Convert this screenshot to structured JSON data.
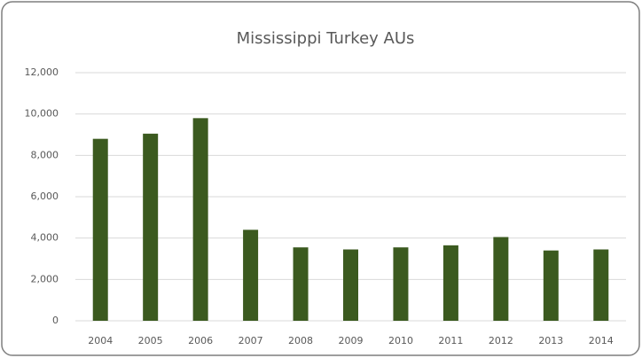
{
  "chart_data": {
    "type": "bar",
    "title": "Mississippi Turkey AUs",
    "categories": [
      "2004",
      "2005",
      "2006",
      "2007",
      "2008",
      "2009",
      "2010",
      "2011",
      "2012",
      "2013",
      "2014"
    ],
    "values": [
      8800,
      9050,
      9800,
      4400,
      3550,
      3450,
      3550,
      3650,
      4050,
      3400,
      3450
    ],
    "color": "#3b5a1f",
    "ylim": [
      0,
      12000
    ],
    "yticks": [
      0,
      {
        "value": 2000,
        "label": "2,000"
      },
      {
        "value": 4000,
        "label": "4,000"
      },
      {
        "value": 6000,
        "label": "6,000"
      },
      {
        "value": 8000,
        "label": "8,000"
      },
      {
        "value": 10000,
        "label": "10,000"
      },
      {
        "value": 12000,
        "label": "12,000"
      }
    ],
    "grid": true
  }
}
